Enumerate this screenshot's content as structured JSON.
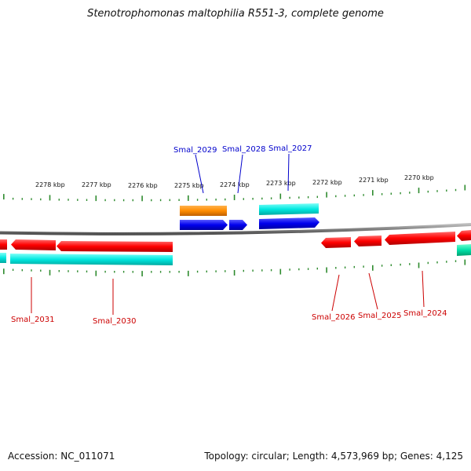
{
  "title": "Stenotrophomonas maltophilia R551-3, complete genome",
  "footer": {
    "accession": "Accession: NC_011071",
    "summary": "Topology: circular; Length: 4,573,969 bp; Genes: 4,125"
  },
  "colors": {
    "backbone": "#808080",
    "tick": "#2e8b2e",
    "forward_label": "#0000cc",
    "reverse_label": "#cc0000",
    "red_gene": "#ff0000",
    "blue_gene": "#0000ee",
    "orange_gene": "#ff8c00",
    "cyan_gene": "#00e0d8",
    "teal_gene": "#00d0a0"
  },
  "tick_labels": [
    "2278 kbp",
    "2277 kbp",
    "2276 kbp",
    "2275 kbp",
    "2274 kbp",
    "2273 kbp",
    "2272 kbp",
    "2271 kbp",
    "2270 kbp"
  ],
  "forward_genes": [
    "Smal_2029",
    "Smal_2028",
    "Smal_2027"
  ],
  "reverse_genes": [
    "Smal_2031",
    "Smal_2030",
    "Smal_2026",
    "Smal_2025",
    "Smal_2024"
  ]
}
